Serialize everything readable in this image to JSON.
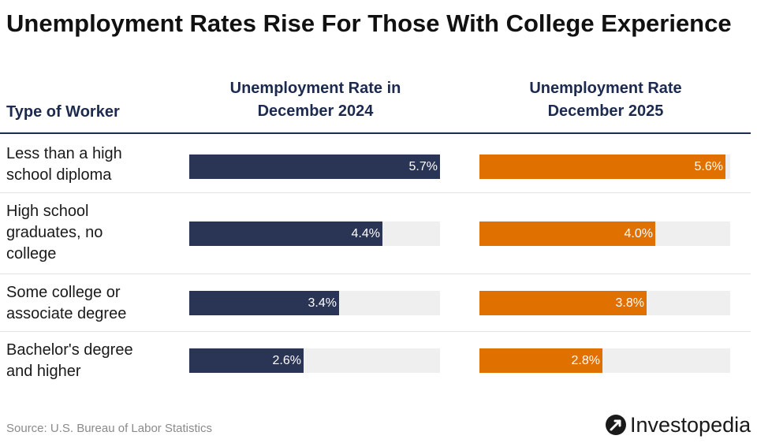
{
  "title": "Unemployment Rates Rise For Those With College Experience",
  "headers": {
    "type": "Type of Worker",
    "col1": [
      "Unemployment Rate in",
      "December 2024"
    ],
    "col2": [
      "Unemployment Rate",
      "December 2025"
    ]
  },
  "chart_data": {
    "type": "bar",
    "title": "Unemployment Rates Rise For Those With College Experience",
    "categories": [
      "Less than a high school diploma",
      "High school graduates, no college",
      "Some college or associate degree",
      "Bachelor's degree and higher"
    ],
    "category_lines": [
      [
        "Less than a high",
        "school diploma"
      ],
      [
        "High school",
        "graduates, no",
        "college"
      ],
      [
        "Some college or",
        "associate degree"
      ],
      [
        "Bachelor's degree",
        "and higher"
      ]
    ],
    "series": [
      {
        "name": "Unemployment Rate in December 2024",
        "values": [
          5.7,
          4.4,
          3.4,
          2.6
        ],
        "labels": [
          "5.7%",
          "4.4%",
          "3.4%",
          "2.6%"
        ],
        "color": "#2a3455"
      },
      {
        "name": "Unemployment Rate December 2025",
        "values": [
          5.6,
          4.0,
          3.8,
          2.8
        ],
        "labels": [
          "5.6%",
          "4.0%",
          "3.8%",
          "2.8%"
        ],
        "color": "#e07000"
      }
    ],
    "xlim": [
      0,
      5.7
    ]
  },
  "source": "Source: U.S. Bureau of Labor Statistics",
  "brand": "Investopedia"
}
